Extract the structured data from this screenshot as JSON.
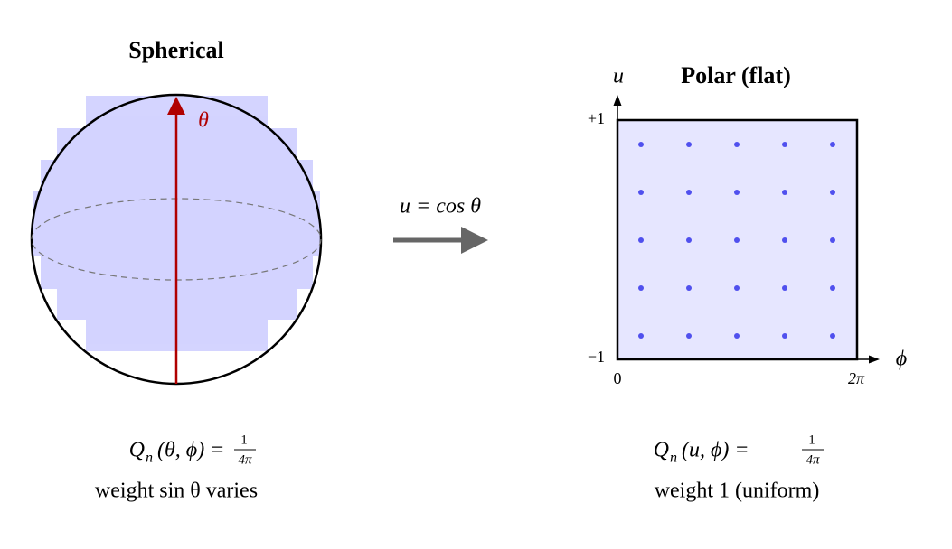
{
  "left": {
    "title": "Spherical",
    "theta_label": "θ",
    "formula": {
      "Q": "Q",
      "sub": "n",
      "args": "(θ, ϕ) =",
      "num": "1",
      "den": "4π"
    },
    "caption": "weight sin θ varies"
  },
  "transform": {
    "label": "u = cos θ"
  },
  "right": {
    "title": "Polar (flat)",
    "y_axis_label": "u",
    "x_axis_label": "ϕ",
    "y_top": "+1",
    "y_bottom": "−1",
    "x_left": "0",
    "x_right": "2π",
    "formula": {
      "Q": "Q",
      "sub": "n",
      "args": "(u, ϕ) =",
      "num": "1",
      "den": "4π"
    },
    "caption": "weight 1 (uniform)"
  }
}
